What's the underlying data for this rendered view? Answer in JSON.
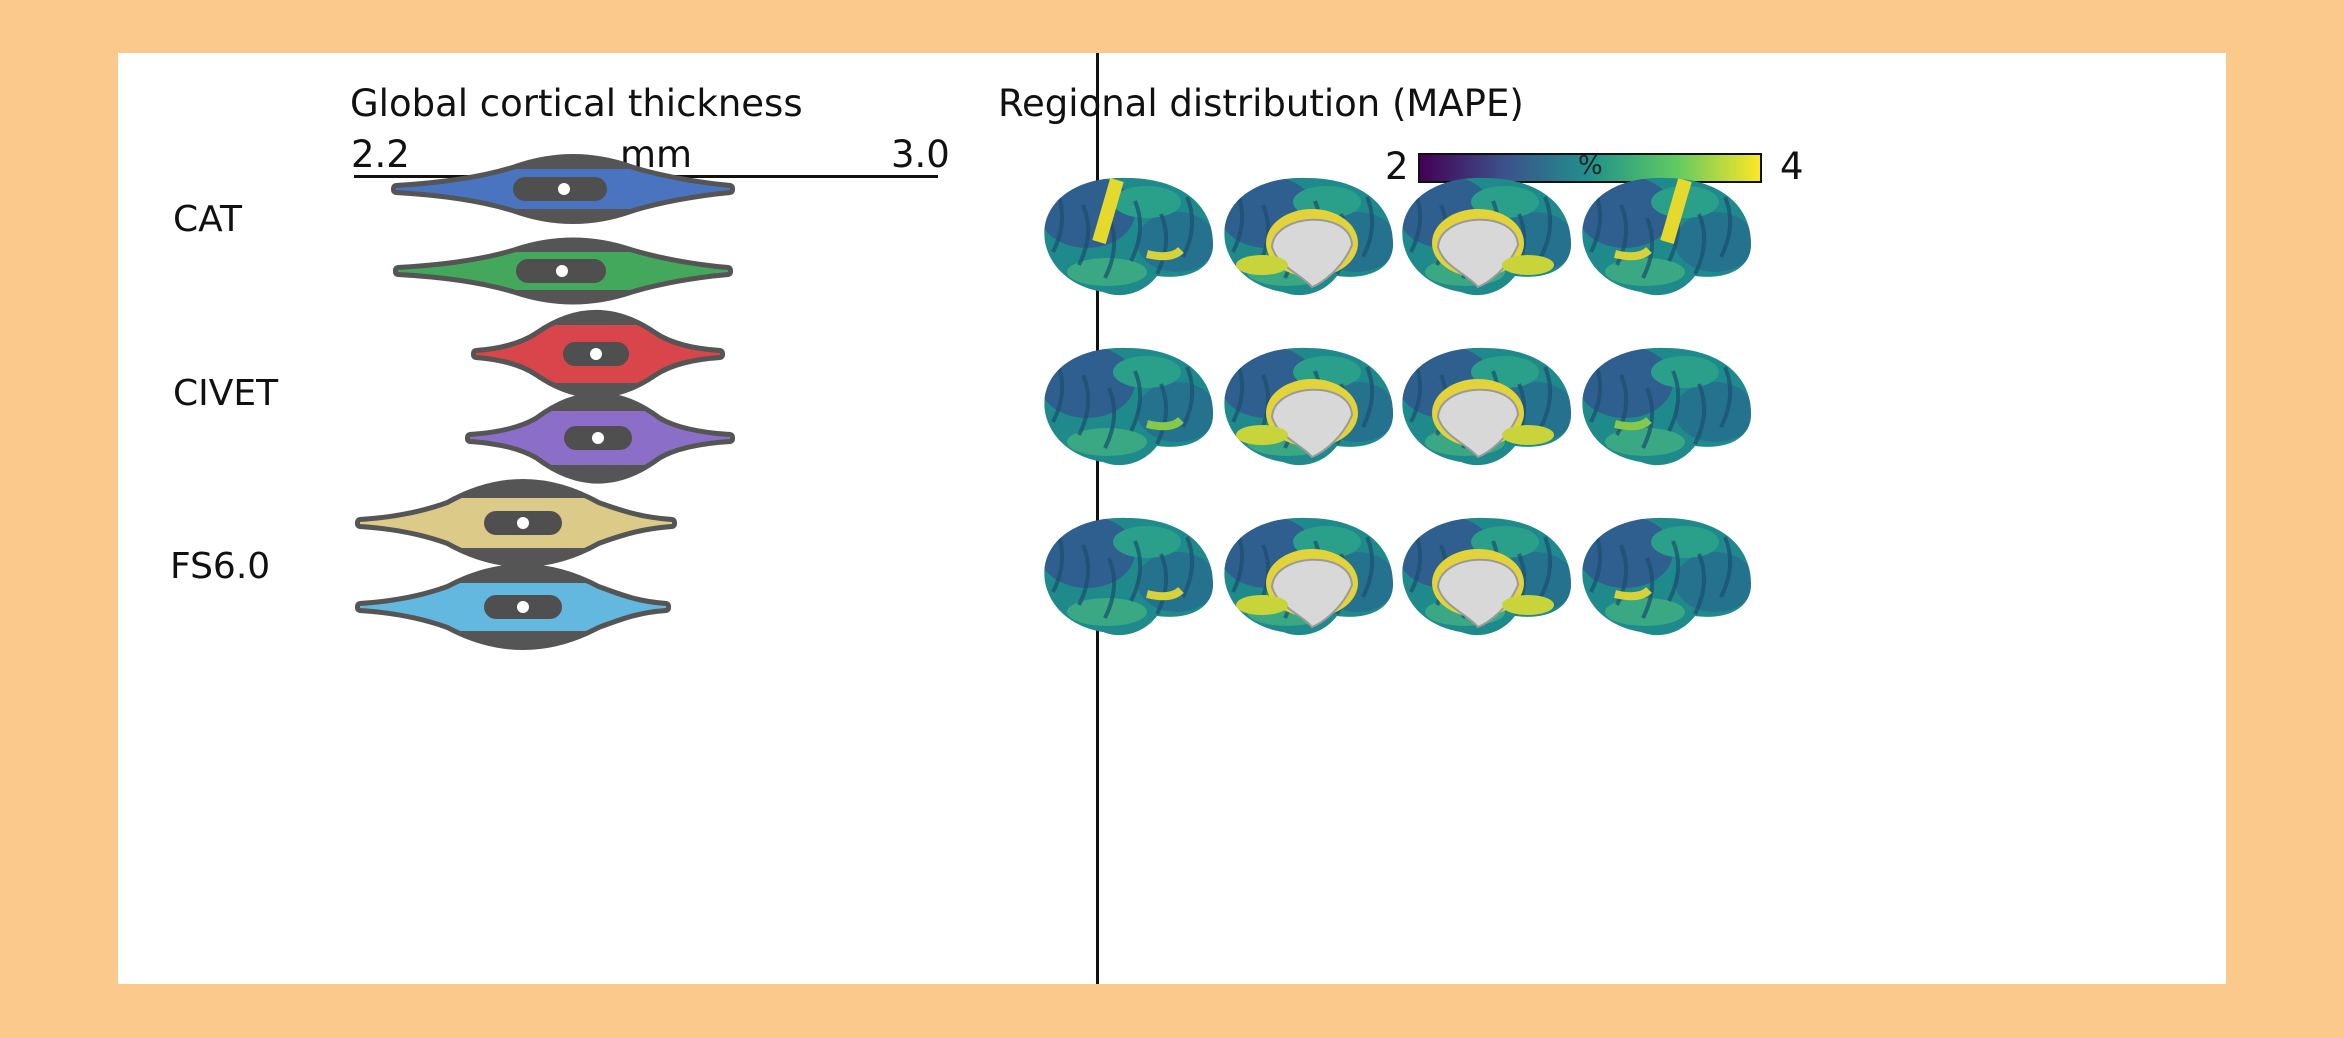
{
  "left_panel": {
    "title": "Global cortical thickness",
    "axis": {
      "min_label": "2.2",
      "unit": "mm",
      "max_label": "3.0"
    },
    "groups": [
      {
        "label": "CAT"
      },
      {
        "label": "CIVET"
      },
      {
        "label": "FS6.0"
      }
    ],
    "violin_colors": [
      "#4a74c0",
      "#43a85c",
      "#d8454a",
      "#8a6ec8",
      "#dccb88",
      "#62b8de"
    ],
    "outline_color": "#555555"
  },
  "right_panel": {
    "title": "Regional distribution (MAPE)",
    "colorbar": {
      "min_label": "2",
      "unit": "%",
      "max_label": "4"
    },
    "rows": 3,
    "columns": 4
  }
}
